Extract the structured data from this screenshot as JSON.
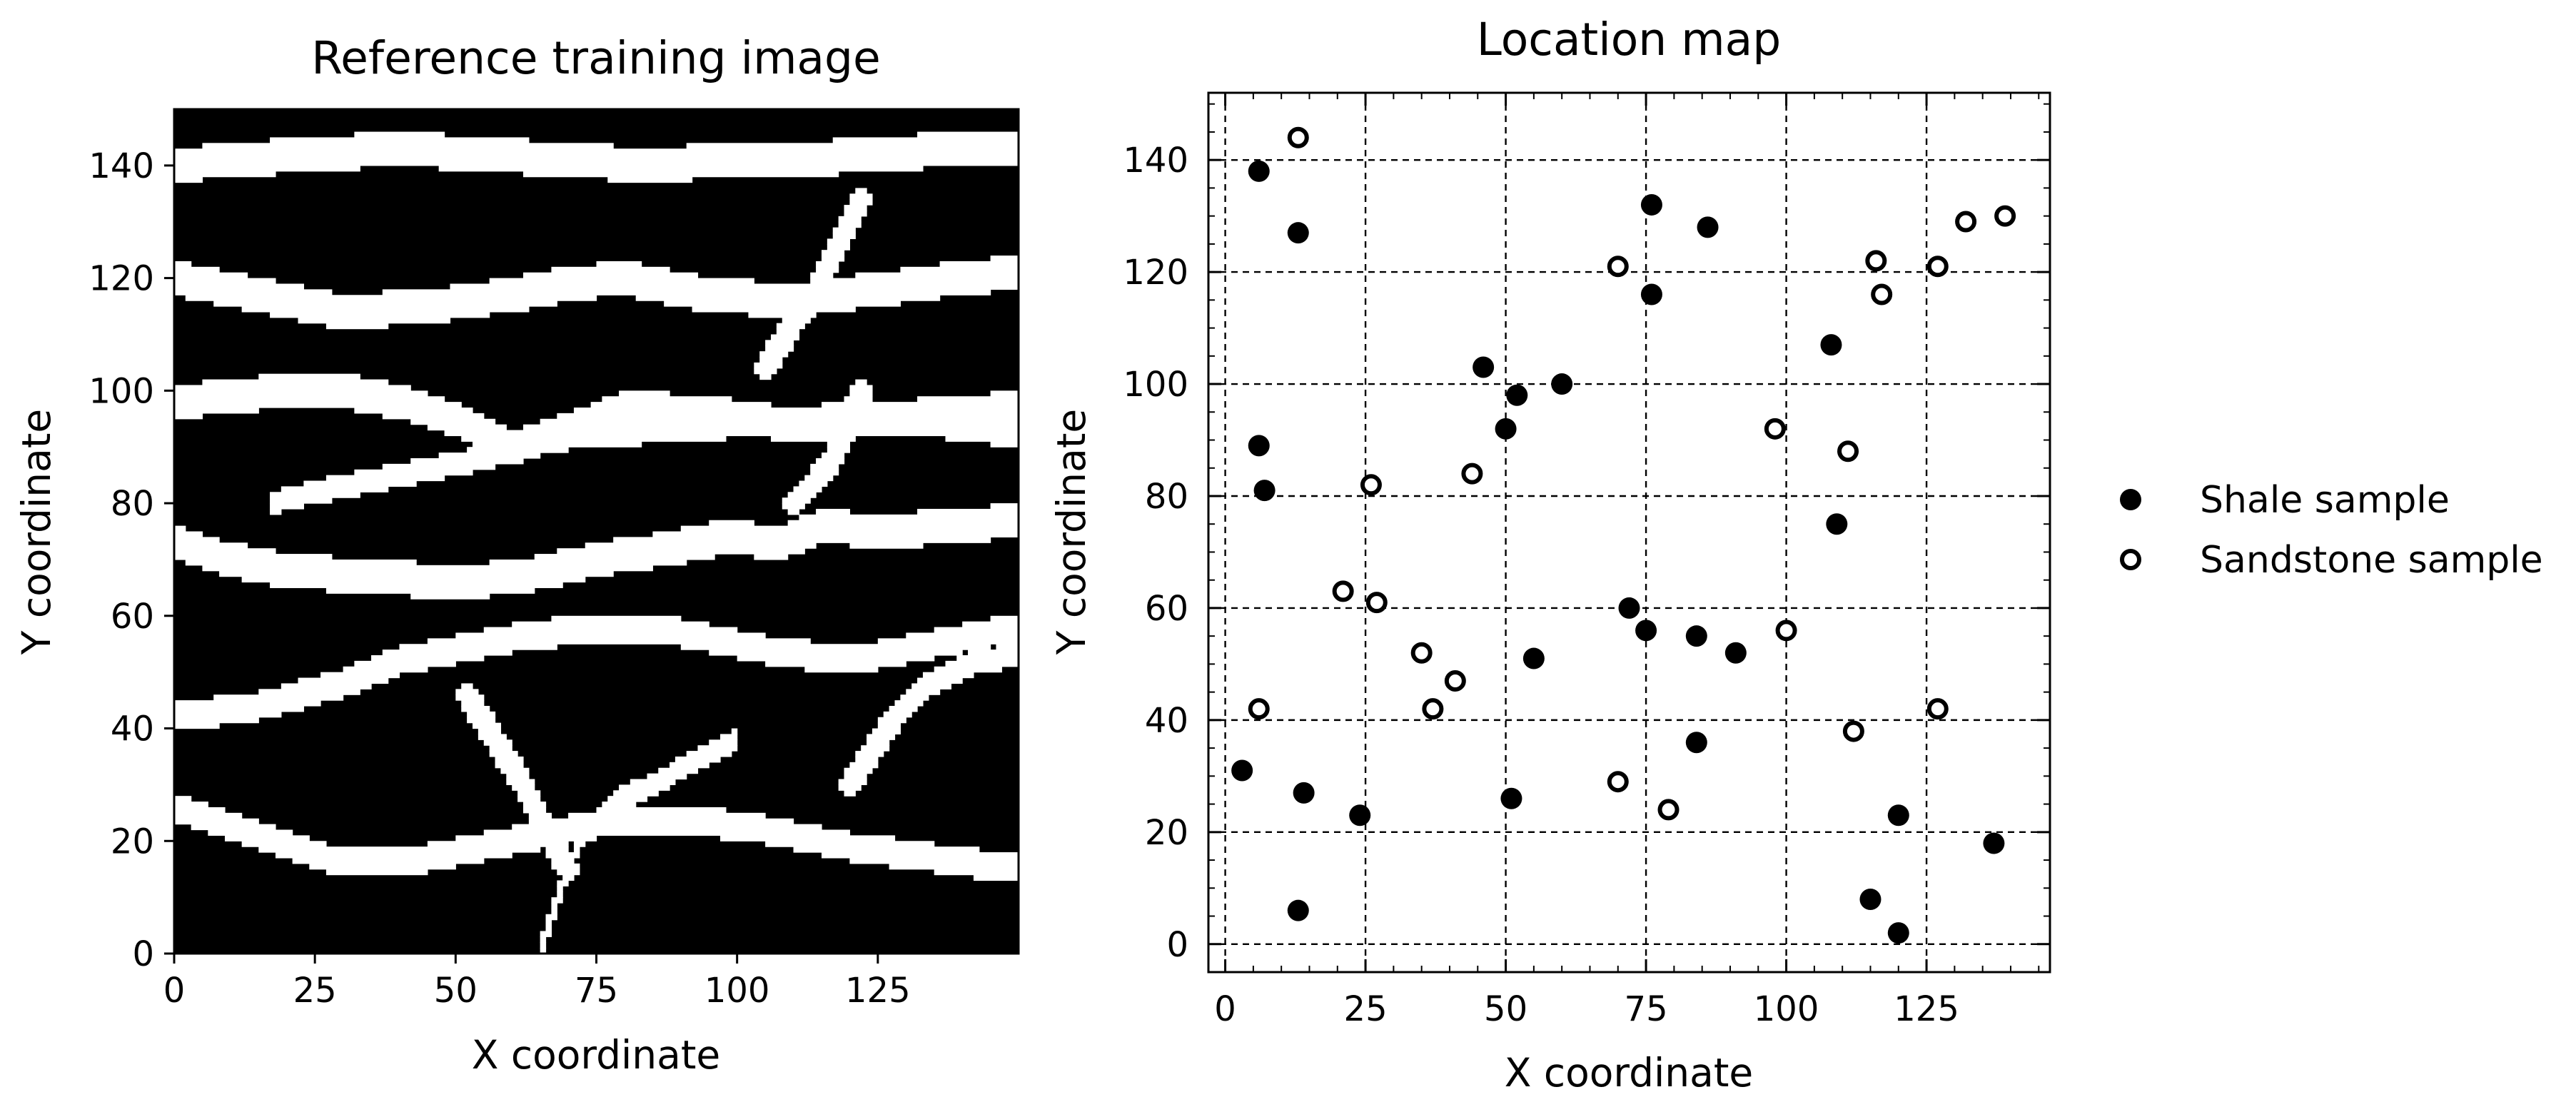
{
  "chart_data": [
    {
      "type": "heatmap",
      "title": "Reference training image",
      "xlabel": "X coordinate",
      "ylabel": "Y coordinate",
      "xlim": [
        0,
        150
      ],
      "ylim": [
        0,
        150
      ],
      "x_ticks": [
        0,
        25,
        50,
        75,
        100,
        125
      ],
      "y_ticks": [
        0,
        20,
        40,
        60,
        80,
        100,
        120,
        140
      ],
      "grid": false,
      "colors": {
        "shale": "#000000",
        "sandstone": "#ffffff"
      },
      "channels": [
        {
          "x": [
            0,
            10,
            25,
            40,
            55,
            70,
            85,
            98,
            110,
            125,
            140,
            150
          ],
          "y": [
            140,
            141,
            142,
            143,
            142,
            141,
            140,
            141,
            141,
            142,
            143,
            143
          ],
          "w": 6
        },
        {
          "x": [
            0,
            15,
            30,
            45,
            60,
            70,
            80,
            95,
            110,
            125,
            140,
            150
          ],
          "y": [
            120,
            117,
            114,
            115,
            117,
            119,
            120,
            117,
            116,
            118,
            120,
            121
          ],
          "w": 6
        },
        {
          "x": [
            0,
            10,
            20,
            30,
            40,
            50,
            60,
            70,
            80,
            95,
            110,
            125,
            140,
            150
          ],
          "y": [
            98,
            99,
            100,
            100,
            98,
            95,
            90,
            93,
            97,
            96,
            94,
            95,
            96,
            97
          ],
          "w": 6
        },
        {
          "x": [
            17,
            25,
            35,
            45,
            55,
            65,
            75,
            90,
            105,
            118,
            130,
            140,
            150
          ],
          "y": [
            80,
            82,
            84,
            86,
            88,
            91,
            92,
            93,
            94,
            96,
            95,
            93,
            92
          ],
          "w": 4
        },
        {
          "x": [
            0,
            10,
            20,
            35,
            50,
            62,
            75,
            88,
            98,
            108,
            115,
            125,
            140,
            150
          ],
          "y": [
            73,
            70,
            68,
            67,
            66,
            67,
            70,
            72,
            74,
            73,
            76,
            75,
            76,
            77
          ],
          "w": 6
        },
        {
          "x": [
            0,
            15,
            30,
            40,
            50,
            60,
            75,
            90,
            105,
            120,
            135,
            150
          ],
          "y": [
            42,
            44,
            48,
            52,
            54,
            56,
            58,
            57,
            54,
            52,
            55,
            58
          ],
          "w": 5
        },
        {
          "x": [
            0,
            15,
            30,
            45,
            60,
            75,
            90,
            105,
            120,
            135,
            150
          ],
          "y": [
            26,
            21,
            16,
            17,
            20,
            23,
            24,
            22,
            19,
            17,
            15
          ],
          "w": 5
        },
        {
          "x": [
            0,
            10,
            25,
            40,
            55,
            70,
            80,
            95,
            110,
            125,
            140,
            150
          ],
          "y": [
            62,
            60,
            58,
            56,
            56,
            58,
            59,
            60,
            58,
            60,
            62,
            63
          ],
          "w": 0
        },
        {
          "x": [
            65,
            68,
            72,
            78,
            85,
            92,
            100
          ],
          "y": [
            0,
            10,
            20,
            27,
            30,
            34,
            38
          ],
          "w": 4
        },
        {
          "x": [
            52,
            57,
            62,
            66,
            70
          ],
          "y": [
            46,
            38,
            30,
            22,
            15
          ],
          "w": 4
        },
        {
          "x": [
            120,
            124,
            128,
            133,
            138,
            143,
            150
          ],
          "y": [
            30,
            36,
            42,
            47,
            50,
            52,
            53
          ],
          "w": 4
        },
        {
          "x": [
            105,
            110,
            114,
            118,
            122
          ],
          "y": [
            104,
            112,
            118,
            126,
            134
          ],
          "w": 4
        },
        {
          "x": [
            110,
            114,
            117,
            120,
            122
          ],
          "y": [
            80,
            84,
            88,
            94,
            100
          ],
          "w": 4
        }
      ]
    },
    {
      "type": "scatter",
      "title": "Location map",
      "xlabel": "X coordinate",
      "ylabel": "Y coordinate",
      "xlim": [
        -3,
        147
      ],
      "ylim": [
        -5,
        152
      ],
      "x_ticks": [
        0,
        25,
        50,
        75,
        100,
        125
      ],
      "y_ticks": [
        0,
        20,
        40,
        60,
        80,
        100,
        120,
        140
      ],
      "grid": true,
      "legend_position": "right",
      "series": [
        {
          "name": "Shale sample",
          "marker": "filled-circle",
          "color": "#000000",
          "x": [
            6,
            13,
            76,
            86,
            76,
            46,
            52,
            60,
            50,
            6,
            7,
            108,
            109,
            72,
            75,
            84,
            91,
            55,
            3,
            14,
            24,
            51,
            84,
            13,
            120,
            115,
            120,
            137
          ],
          "y": [
            138,
            127,
            132,
            128,
            116,
            103,
            98,
            100,
            92,
            89,
            81,
            107,
            75,
            60,
            56,
            55,
            52,
            51,
            31,
            27,
            23,
            26,
            36,
            6,
            23,
            8,
            2,
            18
          ]
        },
        {
          "name": "Sandstone sample",
          "marker": "open-circle",
          "color": "#000000",
          "x": [
            13,
            70,
            116,
            117,
            127,
            132,
            139,
            98,
            111,
            26,
            44,
            21,
            27,
            35,
            41,
            37,
            6,
            100,
            112,
            127,
            70,
            79
          ],
          "y": [
            144,
            121,
            122,
            116,
            121,
            129,
            130,
            92,
            88,
            82,
            84,
            63,
            61,
            52,
            47,
            42,
            42,
            56,
            38,
            42,
            29,
            24
          ]
        }
      ]
    }
  ]
}
